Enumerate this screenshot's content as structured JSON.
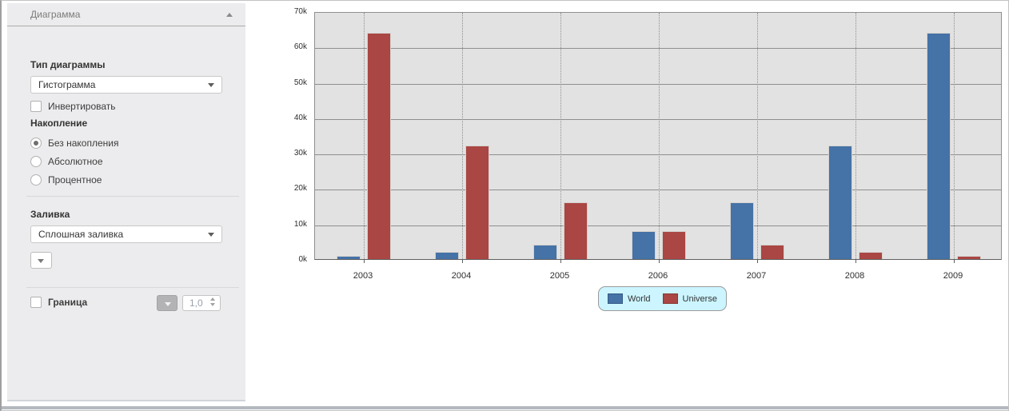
{
  "sidebar": {
    "title": "Диаграмма",
    "chart_type_label": "Тип диаграммы",
    "chart_type_value": "Гистограмма",
    "invert_label": "Инвертировать",
    "stacking_label": "Накопление",
    "stacking_options": [
      {
        "label": "Без накопления",
        "selected": true
      },
      {
        "label": "Абсолютное",
        "selected": false
      },
      {
        "label": "Процентное",
        "selected": false
      }
    ],
    "fill_label": "Заливка",
    "fill_value": "Сплошная заливка",
    "border_label": "Граница",
    "border_checked": false,
    "border_width_value": "1,0",
    "icons": {
      "panel_collapse": "chevron-up-icon",
      "select_arrow": "chevron-down-icon",
      "spinner": "up-down-arrows-icon"
    }
  },
  "chart_data": {
    "type": "bar",
    "title": "",
    "categories": [
      "2003",
      "2004",
      "2005",
      "2006",
      "2007",
      "2008",
      "2009"
    ],
    "series": [
      {
        "name": "World",
        "color": "#4572a7",
        "values": [
          1000,
          2000,
          4000,
          8000,
          16000,
          32000,
          64000
        ]
      },
      {
        "name": "Universe",
        "color": "#aa4643",
        "values": [
          64000,
          32000,
          16000,
          8000,
          4000,
          2000,
          1000
        ]
      }
    ],
    "xlabel": "",
    "ylabel": "",
    "ylim": [
      0,
      70000
    ],
    "ytick_labels": [
      "0k",
      "10k",
      "20k",
      "30k",
      "40k",
      "50k",
      "60k",
      "70k"
    ],
    "grid": true,
    "legend_position": "bottom",
    "plot_bg": "#e2e2e2",
    "legend_bg": "#ccf5ff"
  }
}
